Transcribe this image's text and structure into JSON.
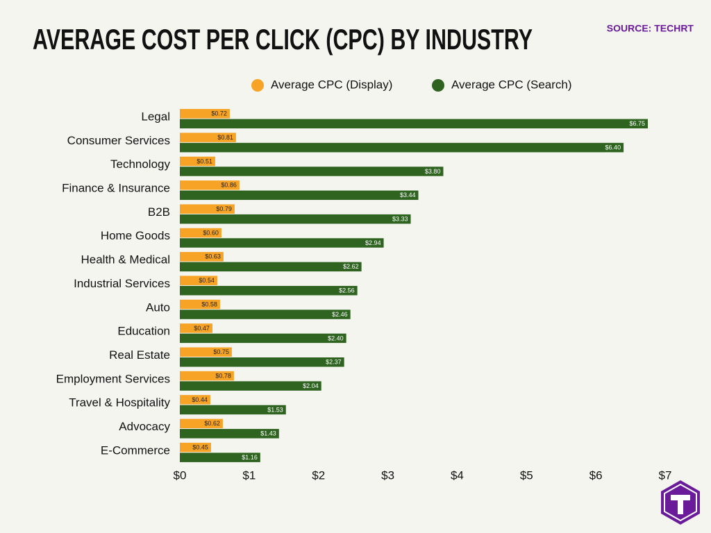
{
  "chart_data": {
    "type": "bar",
    "orientation": "horizontal",
    "title": "AVERAGE COST PER CLICK (CPC) BY INDUSTRY",
    "source": "SOURCE: TECHRT",
    "categories": [
      "Legal",
      "Consumer Services",
      "Technology",
      "Finance & Insurance",
      "B2B",
      "Home Goods",
      "Health & Medical",
      "Industrial Services",
      "Auto",
      "Education",
      "Real Estate",
      "Employment Services",
      "Travel & Hospitality",
      "Advocacy",
      "E-Commerce"
    ],
    "series": [
      {
        "name": "Average CPC (Display)",
        "color": "#f7a325",
        "values": [
          0.72,
          0.81,
          0.51,
          0.86,
          0.79,
          0.6,
          0.63,
          0.54,
          0.58,
          0.47,
          0.75,
          0.78,
          0.44,
          0.62,
          0.45
        ],
        "value_labels": [
          "$0.72",
          "$0.81",
          "$0.51",
          "$0.86",
          "$0.79",
          "$0.60",
          "$0.63",
          "$0.54",
          "$0.58",
          "$0.47",
          "$0.75",
          "$0.78",
          "$0.44",
          "$0.62",
          "$0.45"
        ]
      },
      {
        "name": "Average CPC (Search)",
        "color": "#2e6420",
        "values": [
          6.75,
          6.4,
          3.8,
          3.44,
          3.33,
          2.94,
          2.62,
          2.56,
          2.46,
          2.4,
          2.37,
          2.04,
          1.53,
          1.43,
          1.16
        ],
        "value_labels": [
          "$6.75",
          "$6.40",
          "$3.80",
          "$3.44",
          "$3.33",
          "$2.94",
          "$2.62",
          "$2.56",
          "$2.46",
          "$2.40",
          "$2.37",
          "$2.04",
          "$1.53",
          "$1.43",
          "$1.16"
        ]
      }
    ],
    "xlim": [
      0,
      7
    ],
    "xticks": [
      {
        "value": 0,
        "label": "$0"
      },
      {
        "value": 1,
        "label": "$1"
      },
      {
        "value": 2,
        "label": "$2"
      },
      {
        "value": 3,
        "label": "$3"
      },
      {
        "value": 4,
        "label": "$4"
      },
      {
        "value": 5,
        "label": "$5"
      },
      {
        "value": 6,
        "label": "$6"
      },
      {
        "value": 7,
        "label": "$7"
      }
    ],
    "grid": false,
    "legend": "top"
  }
}
